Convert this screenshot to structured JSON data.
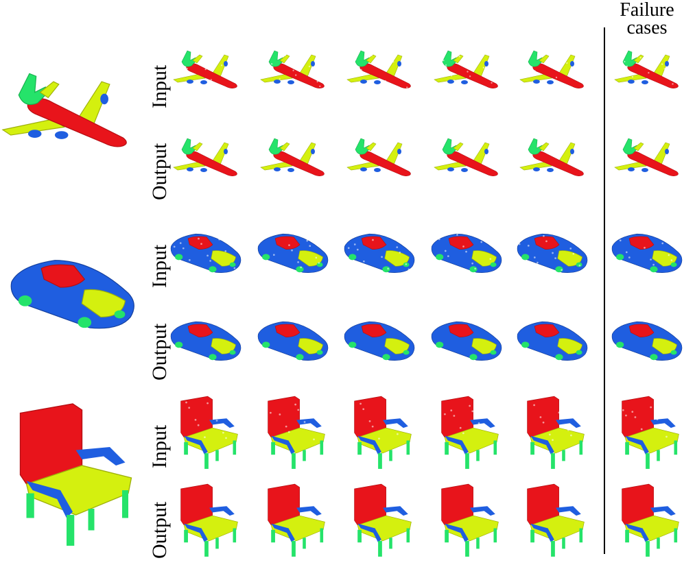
{
  "header": {
    "line1": "Failure",
    "line2": "cases"
  },
  "row_labels": {
    "airplane_input": "Input",
    "airplane_output": "Output",
    "car_input": "Input",
    "car_output": "Output",
    "chair_input": "Input",
    "chair_output": "Output"
  },
  "part_colors": {
    "red": "#e8141b",
    "yellow": "#d4f00f",
    "blue": "#1f5ee0",
    "green": "#25e36a"
  }
}
